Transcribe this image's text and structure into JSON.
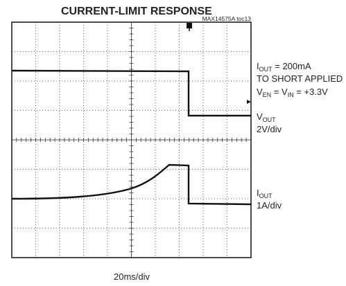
{
  "title": "CURRENT-LIMIT RESPONSE",
  "figure_id": "MAX14575A toc13",
  "annotations": [
    [
      "I",
      "OUT",
      " = 200mA"
    ],
    [
      "TO SHORT APPLIED"
    ],
    [
      "V",
      "EN",
      " = V",
      "IN",
      " = +3.3V"
    ],
    [
      "V",
      "OUT"
    ],
    [
      "2V/div"
    ],
    [
      "I",
      "OUT"
    ],
    [
      "1A/div"
    ]
  ],
  "time_scale": "20ms/div"
}
